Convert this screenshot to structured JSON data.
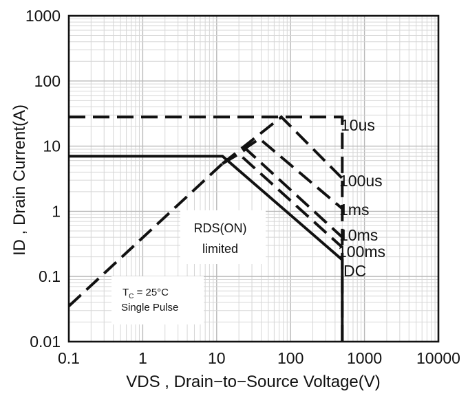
{
  "chart_data": {
    "type": "line",
    "title": "",
    "xlabel": "VDS , Drain−to−Source Voltage(V)",
    "ylabel": "ID , Drain Current(A)",
    "xscale": "log",
    "yscale": "log",
    "xlim": [
      0.1,
      10000
    ],
    "ylim": [
      0.01,
      1000
    ],
    "grid": true,
    "x_tick_labels": [
      "0.1",
      "1",
      "10",
      "100",
      "1000",
      "10000"
    ],
    "y_tick_labels": [
      "0.01",
      "0.1",
      "1",
      "10",
      "100",
      "1000"
    ],
    "series": [
      {
        "name": "10us",
        "style": "dashed",
        "x": [
          0.1,
          500,
          500
        ],
        "y": [
          28,
          28,
          0.01
        ]
      },
      {
        "name": "100us",
        "style": "dashed",
        "x": [
          12,
          75,
          500
        ],
        "y": [
          5.4,
          28,
          3.2
        ]
      },
      {
        "name": "1ms",
        "style": "dashed",
        "x": [
          12,
          38,
          500
        ],
        "y": [
          5.4,
          13,
          1.1
        ]
      },
      {
        "name": "10ms",
        "style": "dashed",
        "x": [
          12,
          25,
          500
        ],
        "y": [
          5.4,
          9,
          0.4
        ]
      },
      {
        "name": "100ms",
        "style": "dashed",
        "x": [
          12,
          20,
          500
        ],
        "y": [
          5.4,
          7.6,
          0.28
        ]
      },
      {
        "name": "DC",
        "style": "solid",
        "x": [
          0.1,
          12,
          500,
          500
        ],
        "y": [
          7,
          7,
          0.18,
          0.01
        ]
      },
      {
        "name": "RDS(ON) limited",
        "style": "dashed",
        "x": [
          0.1,
          12
        ],
        "y": [
          0.035,
          5.4
        ]
      }
    ],
    "annotations": {
      "rds": [
        "RDS(ON)",
        "limited"
      ],
      "conditions": {
        "tc_symbol": "T",
        "tc_sub": "C",
        "tc_value": " = 25°C",
        "pulse": "Single Pulse"
      }
    },
    "colors": {
      "line": "#111111",
      "grid_major": "#b9b9b9",
      "grid_minor": "#d6d6d6",
      "background": "#ffffff"
    }
  }
}
